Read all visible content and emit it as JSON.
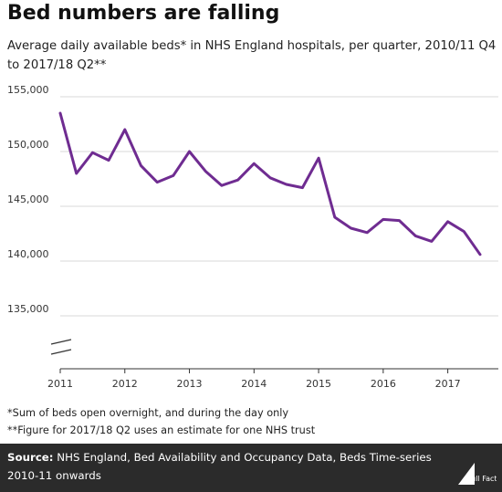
{
  "header": {
    "title": "Bed numbers are falling",
    "subtitle": "Average daily available beds* in NHS England hospitals, per quarter, 2010/11 Q4 to 2017/18 Q2**"
  },
  "notes": {
    "note1": "*Sum of beds open overnight, and during the day only",
    "note2": "**Figure for 2017/18 Q2 uses an estimate for one NHS trust"
  },
  "footer": {
    "source_label": "Source:",
    "source_text": "NHS England, Bed Availability and Occupancy Data, Beds Time-series 2010-11 onwards",
    "logo_text": "Full Fact"
  },
  "colors": {
    "line": "#6f2c91",
    "footer_bg": "#2b2b2b"
  },
  "chart_data": {
    "type": "line",
    "title": "Bed numbers are falling",
    "xlabel": "",
    "ylabel": "",
    "xlim": [
      2011,
      2017.5
    ],
    "ylim": [
      130000,
      155000
    ],
    "yticks": [
      135000,
      140000,
      145000,
      150000,
      155000
    ],
    "ytick_labels": [
      "135,000",
      "140,000",
      "145,000",
      "150,000",
      "155,000"
    ],
    "xticks": [
      2011,
      2012,
      2013,
      2014,
      2015,
      2016,
      2017
    ],
    "xtick_labels": [
      "2011",
      "2012",
      "2013",
      "2014",
      "2015",
      "2016",
      "2017"
    ],
    "axis_break": true,
    "grid": "horizontal",
    "series": [
      {
        "x": [
          2011,
          2011.25,
          2011.5,
          2011.75,
          2012,
          2012.25,
          2012.5,
          2012.75,
          2013,
          2013.25,
          2013.5,
          2013.75,
          2014,
          2014.25,
          2014.5,
          2014.75,
          2015,
          2015.25,
          2015.5,
          2015.75,
          2016,
          2016.25,
          2016.5,
          2016.75,
          2017,
          2017.25,
          2017.5
        ],
        "values": [
          153500,
          148000,
          149900,
          149200,
          152000,
          148700,
          147200,
          147800,
          150000,
          148200,
          146900,
          147400,
          148900,
          147600,
          147000,
          146700,
          149400,
          144000,
          143000,
          142600,
          143800,
          143700,
          142300,
          141800,
          143600,
          142700,
          140600
        ]
      }
    ]
  }
}
